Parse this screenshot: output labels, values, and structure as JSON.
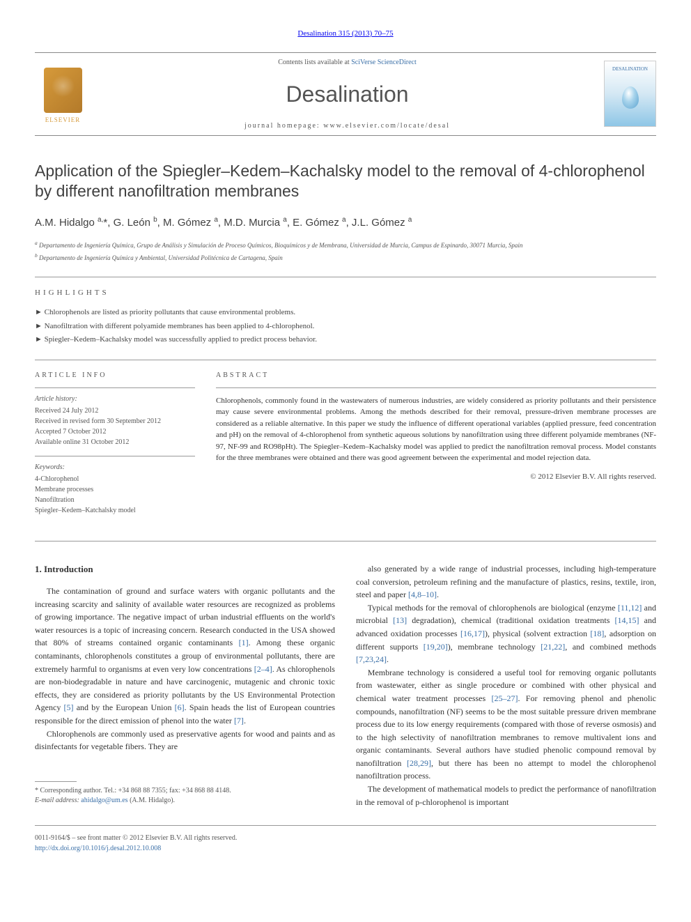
{
  "header": {
    "citation": "Desalination 315 (2013) 70–75",
    "contents_prefix": "Contents lists available at ",
    "contents_link": "SciVerse ScienceDirect",
    "journal_name": "Desalination",
    "homepage_prefix": "journal homepage: ",
    "homepage_url": "www.elsevier.com/locate/desal",
    "publisher": "ELSEVIER",
    "cover_label": "DESALINATION"
  },
  "article": {
    "title": "Application of the Spiegler–Kedem–Kachalsky model to the removal of 4-chlorophenol by different nanofiltration membranes",
    "authors_html": "A.M. Hidalgo <sup>a,</sup><span class='star'>*</span>, G. León <sup>b</sup>, M. Gómez <sup>a</sup>, M.D. Murcia <sup>a</sup>, E. Gómez <sup>a</sup>, J.L. Gómez <sup>a</sup>",
    "affiliations": [
      "Departamento de Ingeniería Química, Grupo de Análisis y Simulación de Proceso Químicos, Bioquímicos y de Membrana, Universidad de Murcia, Campus de Espinardo, 30071 Murcia, Spain",
      "Departamento de Ingeniería Química y Ambiental, Universidad Politécnica de Cartagena, Spain"
    ],
    "aff_markers": [
      "a",
      "b"
    ]
  },
  "highlights": {
    "label": "HIGHLIGHTS",
    "items": [
      "Chlorophenols are listed as priority pollutants that cause environmental problems.",
      "Nanofiltration with different polyamide membranes has been applied to 4-chlorophenol.",
      "Spiegler–Kedem–Kachalsky model was successfully applied to predict process behavior."
    ]
  },
  "article_info": {
    "label": "ARTICLE INFO",
    "history_heading": "Article history:",
    "history": [
      "Received 24 July 2012",
      "Received in revised form 30 September 2012",
      "Accepted 7 October 2012",
      "Available online 31 October 2012"
    ],
    "keywords_heading": "Keywords:",
    "keywords": [
      "4-Chlorophenol",
      "Membrane processes",
      "Nanofiltration",
      "Spiegler–Kedem–Katchalsky model"
    ]
  },
  "abstract": {
    "label": "ABSTRACT",
    "text": "Chlorophenols, commonly found in the wastewaters of numerous industries, are widely considered as priority pollutants and their persistence may cause severe environmental problems. Among the methods described for their removal, pressure-driven membrane processes are considered as a reliable alternative. In this paper we study the influence of different operational variables (applied pressure, feed concentration and pH) on the removal of 4-chlorophenol from synthetic aqueous solutions by nanofiltration using three different polyamide membranes (NF-97, NF-99 and RO98pHt). The Spiegler–Kedem–Kachalsky model was applied to predict the nanofiltration removal process. Model constants for the three membranes were obtained and there was good agreement between the experimental and model rejection data.",
    "copyright": "© 2012 Elsevier B.V. All rights reserved."
  },
  "body": {
    "section_heading": "1. Introduction",
    "left_paragraphs": [
      "The contamination of ground and surface waters with organic pollutants and the increasing scarcity and salinity of available water resources are recognized as problems of growing importance. The negative impact of urban industrial effluents on the world's water resources is a topic of increasing concern. Research conducted in the USA showed that 80% of streams contained organic contaminants <a href='#'>[1]</a>. Among these organic contaminants, chlorophenols constitutes a group of environmental pollutants, there are extremely harmful to organisms at even very low concentrations <a href='#'>[2–4]</a>. As chlorophenols are non-biodegradable in nature and have carcinogenic, mutagenic and chronic toxic effects, they are considered as priority pollutants by the US Environmental Protection Agency <a href='#'>[5]</a> and by the European Union <a href='#'>[6]</a>. Spain heads the list of European countries responsible for the direct emission of phenol into the water <a href='#'>[7]</a>.",
      "Chlorophenols are commonly used as preservative agents for wood and paints and as disinfectants for vegetable fibers. They are"
    ],
    "right_paragraphs": [
      "also generated by a wide range of industrial processes, including high-temperature coal conversion, petroleum refining and the manufacture of plastics, resins, textile, iron, steel and paper <a href='#'>[4,8–10]</a>.",
      "Typical methods for the removal of chlorophenols are biological (enzyme <a href='#'>[11,12]</a> and microbial <a href='#'>[13]</a> degradation), chemical (traditional oxidation treatments <a href='#'>[14,15]</a> and advanced oxidation processes <a href='#'>[16,17]</a>), physical (solvent extraction <a href='#'>[18]</a>, adsorption on different supports <a href='#'>[19,20]</a>), membrane technology <a href='#'>[21,22]</a>, and combined methods <a href='#'>[7,23,24]</a>.",
      "Membrane technology is considered a useful tool for removing organic pollutants from wastewater, either as single procedure or combined with other physical and chemical water treatment processes <a href='#'>[25–27]</a>. For removing phenol and phenolic compounds, nanofiltration (NF) seems to be the most suitable pressure driven membrane process due to its low energy requirements (compared with those of reverse osmosis) and to the high selectivity of nanofiltration membranes to remove multivalent ions and organic contaminants. Several authors have studied phenolic compound removal by nanofiltration <a href='#'>[28,29]</a>, but there has been no attempt to model the chlorophenol nanofiltration process.",
      "The development of mathematical models to predict the performance of nanofiltration in the removal of p-chlorophenol is important"
    ]
  },
  "footnote": {
    "corresponding": "* Corresponding author. Tel.: +34 868 88 7355; fax: +34 868 88 4148.",
    "email_label": "E-mail address:",
    "email": "ahidalgo@um.es",
    "email_suffix": "(A.M. Hidalgo)."
  },
  "footer": {
    "line1": "0011-9164/$ – see front matter © 2012 Elsevier B.V. All rights reserved.",
    "doi": "http://dx.doi.org/10.1016/j.desal.2012.10.008"
  },
  "colors": {
    "link": "#3a6fa7",
    "text": "#333333",
    "heading": "#404040",
    "rule": "#999999"
  }
}
